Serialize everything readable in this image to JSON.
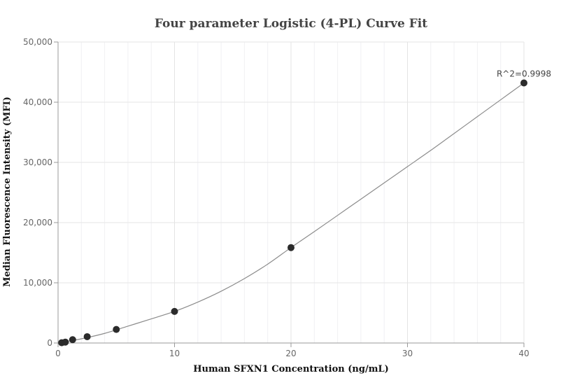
{
  "chart_data": {
    "type": "scatter",
    "title": "Four parameter Logistic (4-PL) Curve Fit",
    "xlabel": "Human SFXN1 Concentration (ng/mL)",
    "ylabel": "Median Fluorescence Intensity (MFI)",
    "xlim": [
      0,
      40
    ],
    "ylim": [
      0,
      50000
    ],
    "x_ticks": [
      0,
      10,
      20,
      30,
      40
    ],
    "x_tick_labels": [
      "0",
      "10",
      "20",
      "30",
      "40"
    ],
    "y_ticks": [
      0,
      10000,
      20000,
      30000,
      40000,
      50000
    ],
    "y_tick_labels": [
      "0",
      "10,000",
      "20,000",
      "30,000",
      "40,000",
      "50,000"
    ],
    "grid": true,
    "points": [
      {
        "x": 0.3125,
        "y": 50
      },
      {
        "x": 0.625,
        "y": 150
      },
      {
        "x": 1.25,
        "y": 550
      },
      {
        "x": 2.5,
        "y": 1050
      },
      {
        "x": 5,
        "y": 2250
      },
      {
        "x": 10,
        "y": 5250
      },
      {
        "x": 20,
        "y": 15850
      },
      {
        "x": 40,
        "y": 43200
      }
    ],
    "fit_curve": {
      "x": [
        0,
        2,
        4,
        6,
        8,
        10,
        12,
        14,
        16,
        18,
        20,
        22,
        24,
        26,
        28,
        30,
        32,
        34,
        36,
        38,
        40
      ],
      "y": [
        0,
        700,
        1600,
        2800,
        4000,
        5250,
        6800,
        8600,
        10700,
        13100,
        15850,
        18500,
        21200,
        23900,
        26600,
        29300,
        32000,
        34800,
        37600,
        40400,
        43200
      ]
    },
    "annotation": "R^2=0.9998",
    "colors": {
      "point": "#2b2b2b",
      "curve": "#8c8c8c",
      "grid": "#e6e6e6",
      "axis": "#999999"
    }
  }
}
